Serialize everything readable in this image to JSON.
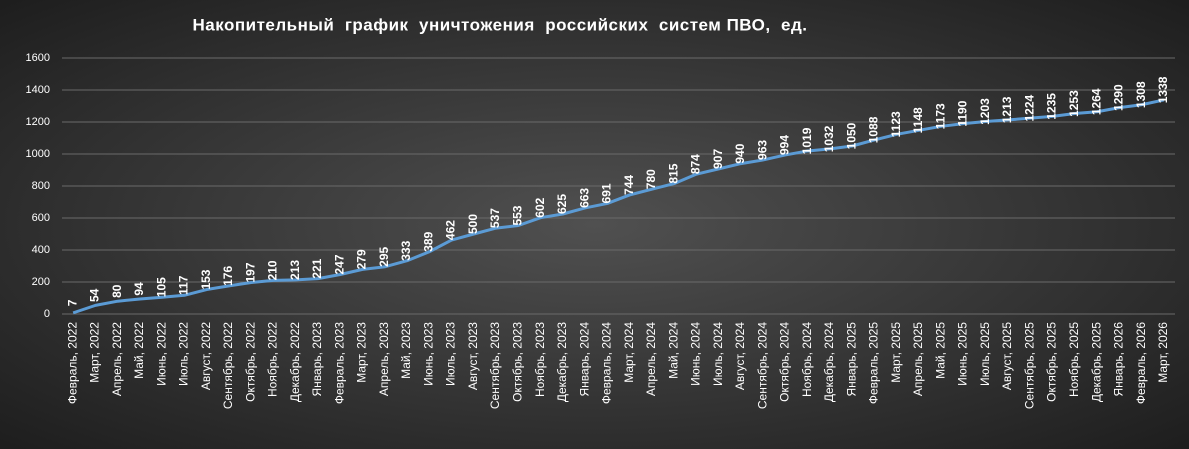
{
  "chart_data": {
    "type": "line",
    "title": "Накопительный  график  уничтожения  российских  систем ПВО,  ед.",
    "categories": [
      "Февраль, 2022",
      "Март, 2022",
      "Апрель, 2022",
      "Май, 2022",
      "Июнь, 2022",
      "Июль, 2022",
      "Август, 2022",
      "Сентябрь, 2022",
      "Октябрь, 2022",
      "Ноябрь, 2022",
      "Декабрь, 2022",
      "Январь, 2023",
      "Февраль, 2023",
      "Март, 2023",
      "Апрель, 2023",
      "Май, 2023",
      "Июнь, 2023",
      "Июль, 2023",
      "Август, 2023",
      "Сентябрь, 2023",
      "Октябрь, 2023",
      "Ноябрь, 2023",
      "Декабрь, 2023",
      "Январь, 2024",
      "Февраль, 2024",
      "Март, 2024",
      "Апрель, 2024",
      "Май, 2024",
      "Июнь, 2024",
      "Июль, 2024",
      "Август, 2024",
      "Сентябрь, 2024",
      "Октябрь, 2024",
      "Ноябрь, 2024",
      "Декабрь, 2024",
      "Январь, 2025",
      "Февраль, 2025",
      "Март, 2025",
      "Апрель, 2025",
      "Май, 2025",
      "Июнь, 2025",
      "Июль, 2025",
      "Август, 2025",
      "Сентябрь, 2025",
      "Октябрь, 2025",
      "Ноябрь, 2025",
      "Декабрь, 2025",
      "Январь, 2026",
      "Февраль, 2026",
      "Март, 2026"
    ],
    "values": [
      7,
      54,
      80,
      94,
      105,
      117,
      153,
      176,
      197,
      210,
      213,
      221,
      247,
      279,
      295,
      333,
      389,
      462,
      500,
      537,
      553,
      602,
      625,
      663,
      691,
      744,
      780,
      815,
      874,
      907,
      940,
      963,
      994,
      1019,
      1032,
      1050,
      1088,
      1123,
      1148,
      1173,
      1190,
      1203,
      1213,
      1224,
      1235,
      1253,
      1264,
      1290,
      1308,
      1338
    ],
    "color": "#5b9bd5",
    "ylim": [
      0,
      1600
    ],
    "yticks": [
      0,
      200,
      400,
      600,
      800,
      1000,
      1200,
      1400,
      1600
    ],
    "grid": true
  }
}
